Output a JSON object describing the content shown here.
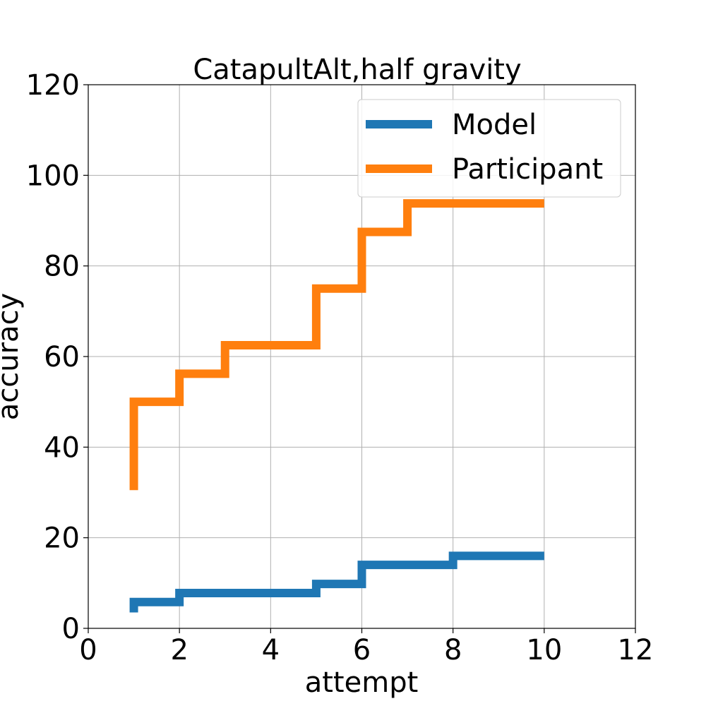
{
  "chart_data": {
    "type": "line",
    "step": "post",
    "title": "CatapultAlt,half gravity",
    "xlabel": "attempt",
    "ylabel": "accuracy",
    "xlim": [
      0,
      12
    ],
    "ylim": [
      0,
      120
    ],
    "xticks": [
      0,
      2,
      4,
      6,
      8,
      10,
      12
    ],
    "yticks": [
      0,
      20,
      40,
      60,
      80,
      100,
      120
    ],
    "grid": true,
    "legend_position": "top-right",
    "series": [
      {
        "name": "Model",
        "color": "#1f77b4",
        "x": [
          1,
          1,
          2,
          5,
          6,
          8,
          10
        ],
        "y": [
          3.5,
          5.8,
          7.8,
          9.8,
          14,
          16,
          16
        ]
      },
      {
        "name": "Participant",
        "color": "#ff7f0e",
        "x": [
          1,
          1,
          2,
          3,
          5,
          6,
          7,
          10
        ],
        "y": [
          30.5,
          50,
          56.2,
          62.5,
          75,
          87.5,
          93.8,
          93.8
        ]
      }
    ]
  }
}
